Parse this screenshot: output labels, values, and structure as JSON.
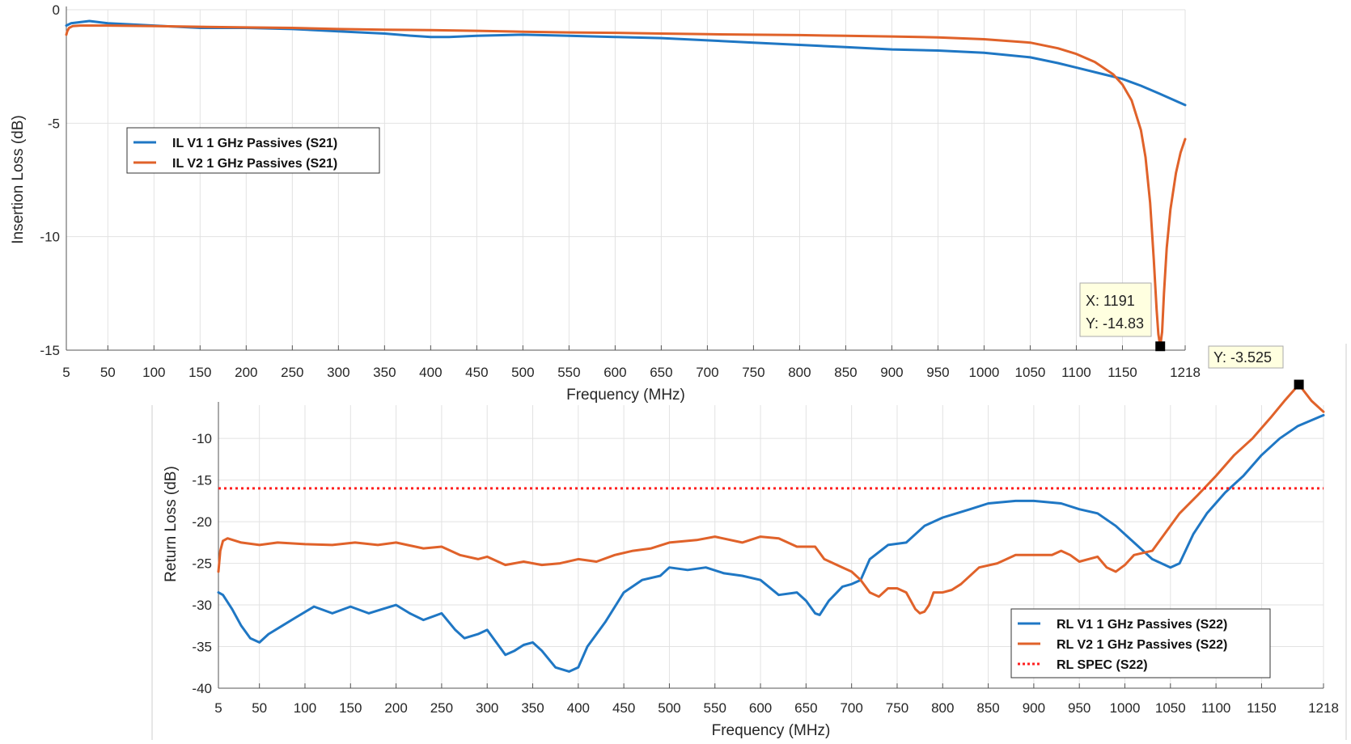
{
  "chart_data": [
    {
      "type": "line",
      "xlabel": "Frequency (MHz)",
      "ylabel": "Insertion Loss (dB)",
      "xlim": [
        5,
        1218
      ],
      "ylim": [
        -15,
        0
      ],
      "grid": true,
      "x_ticks": [
        5,
        50,
        100,
        150,
        200,
        250,
        300,
        350,
        400,
        450,
        500,
        550,
        600,
        650,
        700,
        750,
        800,
        850,
        900,
        950,
        1000,
        1050,
        1100,
        1150,
        1218
      ],
      "y_ticks": [
        0,
        -5,
        -10,
        -15
      ],
      "legend_position": "left",
      "series": [
        {
          "name": "IL V1 1 GHz Passives (S21)",
          "color": "#1f77c4",
          "x": [
            5,
            10,
            20,
            30,
            40,
            50,
            100,
            150,
            200,
            250,
            300,
            350,
            380,
            400,
            420,
            450,
            500,
            550,
            600,
            650,
            700,
            750,
            800,
            850,
            900,
            950,
            1000,
            1050,
            1080,
            1100,
            1130,
            1150,
            1170,
            1190,
            1218
          ],
          "values": [
            -0.7,
            -0.6,
            -0.55,
            -0.5,
            -0.55,
            -0.6,
            -0.7,
            -0.8,
            -0.8,
            -0.85,
            -0.95,
            -1.05,
            -1.15,
            -1.2,
            -1.2,
            -1.15,
            -1.1,
            -1.15,
            -1.2,
            -1.25,
            -1.35,
            -1.45,
            -1.55,
            -1.65,
            -1.75,
            -1.8,
            -1.9,
            -2.1,
            -2.35,
            -2.55,
            -2.85,
            -3.05,
            -3.35,
            -3.7,
            -4.2
          ]
        },
        {
          "name": "IL V2 1 GHz Passives (S21)",
          "color": "#e0622a",
          "x": [
            5,
            6,
            8,
            12,
            20,
            50,
            100,
            150,
            200,
            250,
            300,
            350,
            400,
            450,
            500,
            550,
            600,
            650,
            700,
            750,
            800,
            850,
            900,
            950,
            1000,
            1050,
            1080,
            1100,
            1120,
            1140,
            1150,
            1160,
            1170,
            1175,
            1180,
            1184,
            1187,
            1189,
            1191,
            1193,
            1195,
            1198,
            1202,
            1208,
            1213,
            1218
          ],
          "values": [
            -1.1,
            -0.95,
            -0.8,
            -0.72,
            -0.7,
            -0.7,
            -0.72,
            -0.75,
            -0.78,
            -0.8,
            -0.85,
            -0.88,
            -0.9,
            -0.93,
            -0.97,
            -1.0,
            -1.02,
            -1.05,
            -1.08,
            -1.1,
            -1.12,
            -1.15,
            -1.18,
            -1.22,
            -1.3,
            -1.45,
            -1.7,
            -1.95,
            -2.3,
            -2.85,
            -3.3,
            -4.0,
            -5.3,
            -6.5,
            -8.5,
            -11.0,
            -13.2,
            -14.3,
            -14.83,
            -14.2,
            -12.5,
            -10.5,
            -8.8,
            -7.2,
            -6.3,
            -5.7
          ]
        }
      ],
      "annotation": {
        "x_label": "X: 1191",
        "y_label": "Y: -14.83",
        "x": 1191,
        "y": -14.83
      }
    },
    {
      "type": "line",
      "xlabel": "Frequency (MHz)",
      "ylabel": "Return Loss (dB)",
      "xlim": [
        5,
        1218
      ],
      "ylim": [
        -40,
        -6
      ],
      "grid": true,
      "x_ticks": [
        5,
        50,
        100,
        150,
        200,
        250,
        300,
        350,
        400,
        450,
        500,
        550,
        600,
        650,
        700,
        750,
        800,
        850,
        900,
        950,
        1000,
        1050,
        1100,
        1150,
        1218
      ],
      "y_ticks": [
        -10,
        -15,
        -20,
        -25,
        -30,
        -35,
        -40
      ],
      "legend_position": "bottom-right",
      "series": [
        {
          "name": "RL V1 1 GHz Passives (S22)",
          "color": "#1f77c4",
          "x": [
            5,
            10,
            20,
            30,
            40,
            50,
            60,
            75,
            90,
            110,
            130,
            150,
            170,
            185,
            200,
            215,
            230,
            250,
            265,
            275,
            290,
            300,
            310,
            320,
            330,
            340,
            350,
            360,
            375,
            390,
            400,
            410,
            430,
            450,
            470,
            490,
            500,
            520,
            540,
            560,
            580,
            600,
            620,
            640,
            650,
            660,
            665,
            675,
            690,
            700,
            710,
            720,
            740,
            760,
            780,
            800,
            830,
            850,
            880,
            900,
            930,
            950,
            970,
            990,
            1010,
            1030,
            1050,
            1060,
            1075,
            1090,
            1110,
            1130,
            1150,
            1170,
            1190,
            1218
          ],
          "values": [
            -28.5,
            -28.8,
            -30.5,
            -32.5,
            -34,
            -34.5,
            -33.5,
            -32.5,
            -31.5,
            -30.2,
            -31,
            -30.2,
            -31,
            -30.5,
            -30,
            -31,
            -31.8,
            -31,
            -33,
            -34,
            -33.5,
            -33,
            -34.5,
            -36,
            -35.5,
            -34.8,
            -34.5,
            -35.5,
            -37.5,
            -38,
            -37.5,
            -35,
            -32,
            -28.5,
            -27,
            -26.5,
            -25.5,
            -25.8,
            -25.5,
            -26.2,
            -26.5,
            -27,
            -28.8,
            -28.5,
            -29.5,
            -31,
            -31.2,
            -29.5,
            -27.8,
            -27.5,
            -27,
            -24.5,
            -22.8,
            -22.5,
            -20.5,
            -19.5,
            -18.5,
            -17.8,
            -17.5,
            -17.5,
            -17.8,
            -18.5,
            -19,
            -20.5,
            -22.5,
            -24.5,
            -25.5,
            -25,
            -21.5,
            -19,
            -16.5,
            -14.5,
            -12,
            -10,
            -8.5,
            -7.2
          ]
        },
        {
          "name": "RL V2 1 GHz Passives (S22)",
          "color": "#e0622a",
          "x": [
            5,
            7,
            10,
            15,
            30,
            50,
            70,
            100,
            130,
            155,
            180,
            200,
            230,
            250,
            270,
            290,
            300,
            320,
            340,
            360,
            380,
            400,
            420,
            440,
            460,
            480,
            500,
            530,
            550,
            580,
            600,
            620,
            640,
            660,
            670,
            690,
            700,
            710,
            720,
            730,
            740,
            750,
            760,
            770,
            775,
            780,
            785,
            790,
            800,
            810,
            820,
            840,
            860,
            880,
            900,
            920,
            930,
            940,
            950,
            960,
            970,
            980,
            990,
            1000,
            1010,
            1030,
            1050,
            1060,
            1080,
            1100,
            1120,
            1140,
            1160,
            1175,
            1191,
            1205,
            1218
          ],
          "values": [
            -26,
            -23.5,
            -22.3,
            -22,
            -22.5,
            -22.8,
            -22.5,
            -22.7,
            -22.8,
            -22.5,
            -22.8,
            -22.5,
            -23.2,
            -23,
            -24,
            -24.5,
            -24.2,
            -25.2,
            -24.8,
            -25.2,
            -25,
            -24.5,
            -24.8,
            -24,
            -23.5,
            -23.2,
            -22.5,
            -22.2,
            -21.8,
            -22.5,
            -21.8,
            -22,
            -23,
            -23,
            -24.5,
            -25.5,
            -26,
            -27,
            -28.5,
            -29,
            -28,
            -28,
            -28.5,
            -30.5,
            -31,
            -30.8,
            -30,
            -28.5,
            -28.5,
            -28.2,
            -27.5,
            -25.5,
            -25,
            -24,
            -24,
            -24,
            -23.5,
            -24,
            -24.8,
            -24.5,
            -24.2,
            -25.5,
            -26,
            -25.2,
            -24,
            -23.5,
            -20.5,
            -19,
            -16.8,
            -14.5,
            -12,
            -10,
            -7.5,
            -5.5,
            -3.525,
            -5.5,
            -6.8
          ]
        },
        {
          "name": "RL SPEC (S22)",
          "color": "#ff2020",
          "style": "dotted",
          "x": [
            5,
            1218
          ],
          "values": [
            -16,
            -16
          ]
        }
      ],
      "annotation": {
        "y_label": "Y: -3.525",
        "x": 1191,
        "y": -3.525
      }
    }
  ]
}
